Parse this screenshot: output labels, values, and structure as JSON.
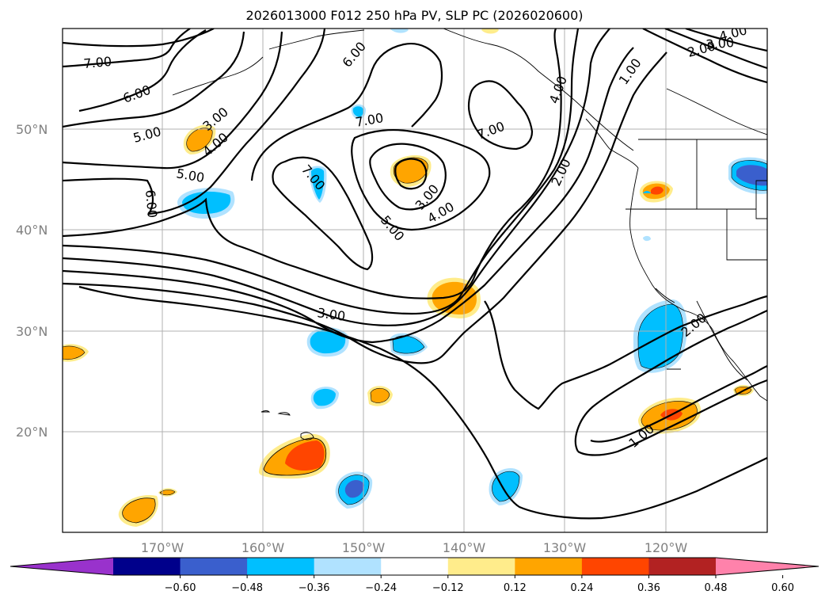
{
  "title": "2026013000 F012 250 hPa PV, SLP PC (2026020600)",
  "lat_labels": [
    "50°N",
    "40°N",
    "30°N",
    "20°N"
  ],
  "lon_labels": [
    "170°W",
    "160°W",
    "150°W",
    "140°W",
    "130°W",
    "120°W"
  ],
  "colorbar": {
    "ticks": [
      "−0.60",
      "−0.48",
      "−0.36",
      "−0.24",
      "−0.12",
      "0.12",
      "0.24",
      "0.36",
      "0.48",
      "0.60"
    ],
    "colors": [
      "#9932cc",
      "#00008b",
      "#3a5fcd",
      "#00bfff",
      "#b0e2ff",
      "#ffffff",
      "#ffec8b",
      "#ffa500",
      "#ff4500",
      "#b22222",
      "#ff82ab"
    ]
  },
  "contour_labels": [
    "7.00",
    "6.00",
    "5.00",
    "3.00",
    "4.00",
    "5.00",
    "6.00",
    "6.00",
    "7.00",
    "7.00",
    "7.00",
    "3.00",
    "4.00",
    "5.00",
    "3.00",
    "2.00",
    "1.00",
    "4.00",
    "3.00",
    "2.00",
    "4.00",
    "2.00",
    "1.00"
  ],
  "fill_colors": {
    "light_blue": "#b0e2ff",
    "blue": "#00bfff",
    "medium_blue": "#3a5fcd",
    "yellow": "#ffec8b",
    "orange": "#ffa500",
    "red_orange": "#ff4500"
  }
}
